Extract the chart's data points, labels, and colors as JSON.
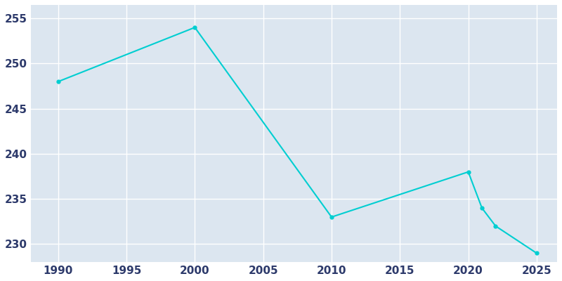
{
  "years": [
    1990,
    2000,
    2010,
    2020,
    2021,
    2022,
    2025
  ],
  "population": [
    248,
    254,
    233,
    238,
    234,
    232,
    229
  ],
  "line_color": "#00CED1",
  "fig_bg_color": "#ffffff",
  "plot_bg_color": "#dce6f0",
  "grid_color": "#ffffff",
  "tick_label_color": "#2d3a6b",
  "ylabel": "",
  "xlabel": "",
  "xlim": [
    1988,
    2026.5
  ],
  "ylim": [
    228,
    256.5
  ],
  "yticks": [
    230,
    235,
    240,
    245,
    250,
    255
  ],
  "xticks": [
    1990,
    1995,
    2000,
    2005,
    2010,
    2015,
    2020,
    2025
  ],
  "linewidth": 1.5,
  "marker": "o",
  "markersize": 3.5
}
